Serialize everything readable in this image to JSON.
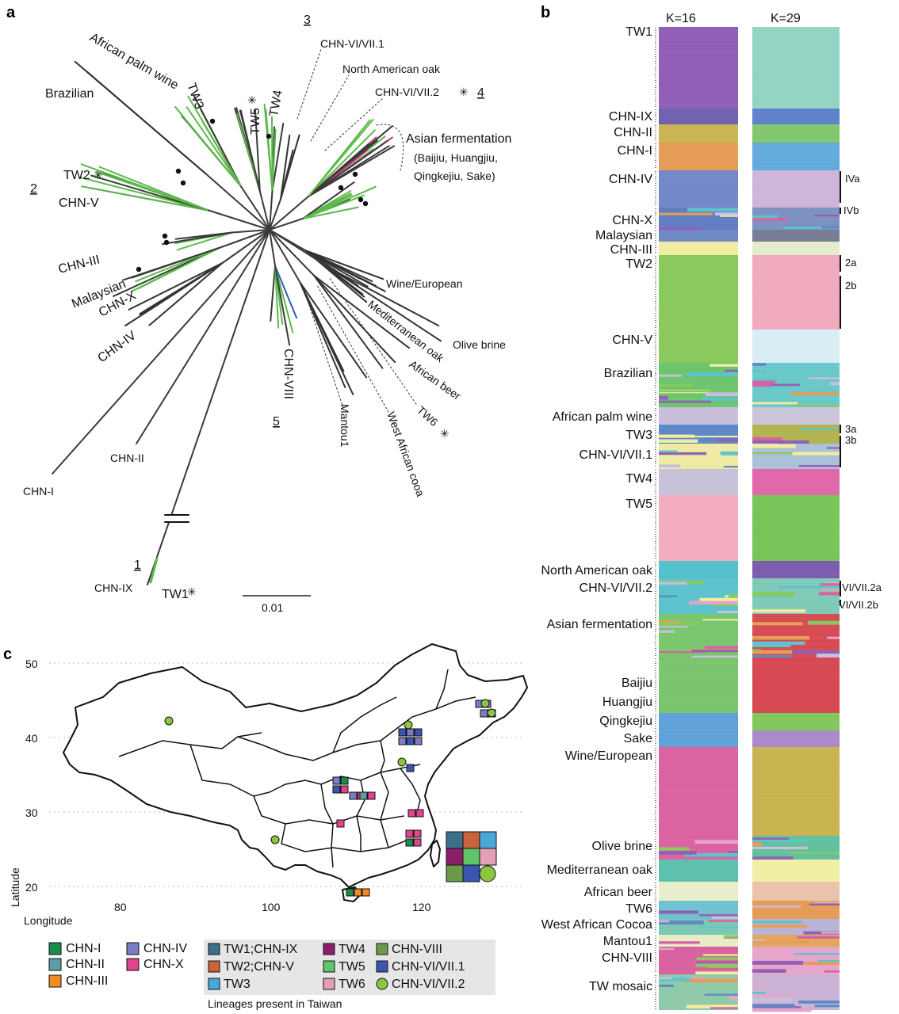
{
  "panel_a": {
    "letter": "a",
    "scale_label": "0.01",
    "clade_numbers": [
      "1",
      "2",
      "3",
      "4",
      "5"
    ],
    "labels": {
      "african_palm_wine": "African palm wine",
      "brazilian": "Brazilian",
      "tw3": "TW3",
      "tw5": "TW5",
      "tw4": "TW4",
      "cvv1": "CHN-VI/VII.1",
      "nao": "North American oak",
      "cvv2": "CHN-VI/VII.2",
      "asian": "Asian fermentation",
      "asian_sub1": "(Baijiu, Huangjiu,",
      "asian_sub2": "Qingkejiu, Sake)",
      "tw2": "TW2",
      "chnv": "CHN-V",
      "chniii": "CHN-III",
      "malaysian": "Malaysian",
      "chnx": "CHN-X",
      "chniv": "CHN-IV",
      "wine": "Wine/European",
      "med_oak": "Mediterranean oak",
      "olive": "Olive brine",
      "afr_beer": "African beer",
      "tw6": "TW6",
      "chnviii": "CHN-VIII",
      "mantou": "Mantou1",
      "wac": "West African cooa",
      "chnii": "CHN-II",
      "chni": "CHN-I",
      "chnix": "CHN-IX",
      "tw1": "TW1",
      "asterisk": "✳"
    }
  },
  "panel_b": {
    "letter": "b",
    "k16": "K=16",
    "k29": "K=29",
    "rows": [
      {
        "label": "TW1",
        "c16": "#8e5bb5",
        "c29": "#8fd3c3"
      },
      {
        "label": "CHN-IX",
        "c16": "#6b5fb0",
        "c29": "#5b7fc8"
      },
      {
        "label": "CHN-II",
        "c16": "#c9b24e",
        "c29": "#7fc66a"
      },
      {
        "label": "CHN-I",
        "c16": "#e49a52",
        "c29": "#5fa9dd"
      },
      {
        "label": "CHN-IV",
        "c16": "#6f84c8",
        "c29": "#cdb2d9"
      },
      {
        "label": "CHN-X",
        "c16": "#5d7bc2",
        "c29": "#7a8fc0"
      },
      {
        "label": "Malaysian",
        "c16": "#6b86c4",
        "c29": "#737a92"
      },
      {
        "label": "CHN-III",
        "c16": "#f1eba0",
        "c29": "#e3eccc"
      },
      {
        "label": "TW2",
        "c16": "#86c858",
        "c29": "#f0a8bc"
      },
      {
        "label": "CHN-V",
        "c16": "#86c858",
        "c29": "#d8edf4"
      },
      {
        "label": "Brazilian",
        "c16": "#6ac36a",
        "c29": "#66c7c7"
      },
      {
        "label": "African palm wine",
        "c16": "#c7bedb",
        "c29": "#c9c4d8"
      },
      {
        "label": "TW3",
        "c16": "#5a86c6",
        "c29": "#b0b24e"
      },
      {
        "label": "CHN-VI/VII.1",
        "c16": "#eeeaa0",
        "c29": "#a9bfd6"
      },
      {
        "label": "TW4",
        "c16": "#c5bfd8",
        "c29": "#e064a6"
      },
      {
        "label": "TW5",
        "c16": "#f3aabd",
        "c29": "#74c455"
      },
      {
        "label": "North American oak",
        "c16": "#4fbfcc",
        "c29": "#7b58ad"
      },
      {
        "label": "CHN-VI/VII.2",
        "c16": "#58c2cb",
        "c29": "#7cc9b6"
      },
      {
        "label": "Asian fermentation",
        "c16": "#75c56a",
        "c29": "#d64750"
      },
      {
        "label": "Baijiu",
        "c16": "#77c46a",
        "c29": "#d6444e"
      },
      {
        "label": "Huangjiu",
        "c16": "#77c46a",
        "c29": "#d6444e"
      },
      {
        "label": "Qingkejiu",
        "c16": "#5c9fd8",
        "c29": "#7fc558"
      },
      {
        "label": "Sake",
        "c16": "#5c9fd8",
        "c29": "#a887c7"
      },
      {
        "label": "Wine/European",
        "c16": "#db5fa0",
        "c29": "#c8b04c"
      },
      {
        "label": "Olive brine",
        "c16": "#db5fa0",
        "c29": "#5ebf9c"
      },
      {
        "label": "Mediterranean oak",
        "c16": "#58c0ab",
        "c29": "#eff0a2"
      },
      {
        "label": "African beer",
        "c16": "#e8edc8",
        "c29": "#e9c1a8"
      },
      {
        "label": "TW6",
        "c16": "#6bc0cf",
        "c29": "#e49a52"
      },
      {
        "label": "West African Cocoa",
        "c16": "#78c6b2",
        "c29": "#b8b2d6"
      },
      {
        "label": "Mantou1",
        "c16": "#e7ecc6",
        "c29": "#e2a35a"
      },
      {
        "label": "CHN-VIII",
        "c16": "#d75e9d",
        "c29": "#e6a3c9"
      },
      {
        "label": "TW mosaic",
        "c16": "#8dc8a8",
        "c29": "#c9b0d4"
      }
    ],
    "right_labels": [
      "IVa",
      "IVb",
      "2a",
      "2b",
      "3a",
      "3b",
      "VI/VII.2a",
      "VI/VII.2b"
    ]
  },
  "panel_c": {
    "letter": "c",
    "ylabel": "Latitude",
    "xlabel": "Longitude",
    "yticks": [
      "50",
      "40",
      "30",
      "20"
    ],
    "xticks": [
      "80",
      "100",
      "120"
    ],
    "legend_left": [
      {
        "label": "CHN-I",
        "color": "#1e8b4f"
      },
      {
        "label": "CHN-II",
        "color": "#5f9ea8"
      },
      {
        "label": "CHN-III",
        "color": "#f08a24"
      },
      {
        "label": "CHN-IV",
        "color": "#7b7cc4"
      },
      {
        "label": "CHN-X",
        "color": "#e0458b"
      }
    ],
    "legend_box": [
      {
        "label": "TW1;CHN-IX",
        "color": "#3b6f8c",
        "shape": "square"
      },
      {
        "label": "TW4",
        "color": "#8b1e6a",
        "shape": "square"
      },
      {
        "label": "CHN-VIII",
        "color": "#6a9a4a",
        "shape": "square"
      },
      {
        "label": "TW2;CHN-V",
        "color": "#c8643a",
        "shape": "square"
      },
      {
        "label": "TW5",
        "color": "#5fc46a",
        "shape": "square"
      },
      {
        "label": "CHN-VI/VII.1",
        "color": "#3a55b0",
        "shape": "square"
      },
      {
        "label": "TW3",
        "color": "#4aa8d8",
        "shape": "square"
      },
      {
        "label": "TW6",
        "color": "#e2a0b4",
        "shape": "square"
      },
      {
        "label": "CHN-VI/VII.2",
        "color": "#8cc63f",
        "shape": "circle"
      }
    ],
    "legend_title": "Lineages present in Taiwan"
  }
}
